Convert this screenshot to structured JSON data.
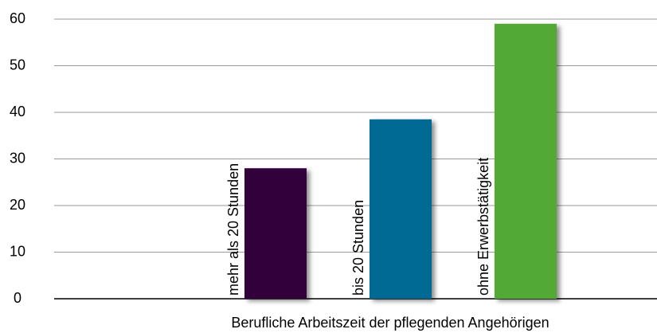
{
  "chart_data": {
    "type": "bar",
    "x_label": "Berufliche Arbeitszeit der pflegenden Angehörigen",
    "categories": [
      "mehr als 20 Stunden",
      "bis 20 Stunden",
      "ohne Erwerbstätigkeit"
    ],
    "values": [
      28,
      38.5,
      59
    ],
    "colors": [
      "#33003a",
      "#006b95",
      "#52a935"
    ],
    "ylim": [
      0,
      60
    ],
    "yticks": [
      0,
      10,
      20,
      30,
      40,
      50,
      60
    ],
    "grid": true
  }
}
